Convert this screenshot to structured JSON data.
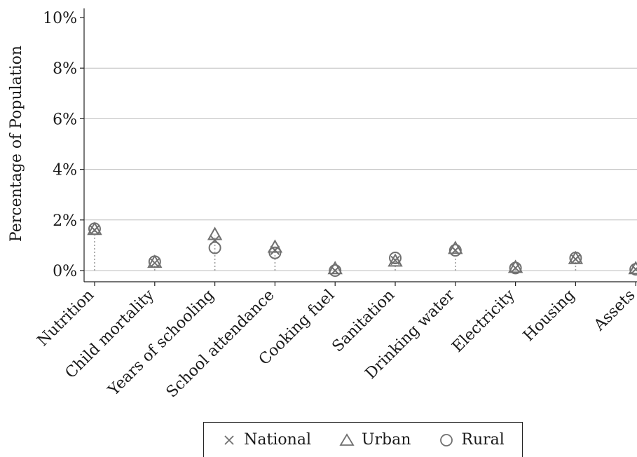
{
  "chart_data": {
    "type": "scatter",
    "ylabel": "Percentage of Population",
    "categories": [
      "Nutrition",
      "Child mortality",
      "Years of schooling",
      "School attendance",
      "Cooking fuel",
      "Sanitation",
      "Drinking water",
      "Electricity",
      "Housing",
      "Assets"
    ],
    "ylim": [
      0,
      10
    ],
    "yticks": [
      "0%",
      "2%",
      "4%",
      "6%",
      "8%",
      "10%"
    ],
    "grid": true,
    "legend": "bottom",
    "series": [
      {
        "name": "National",
        "marker": "x",
        "values": [
          1.6,
          0.3,
          1.2,
          0.8,
          0.0,
          0.4,
          0.8,
          0.1,
          0.45,
          0.05
        ]
      },
      {
        "name": "Urban",
        "marker": "triangle",
        "values": [
          1.6,
          0.3,
          1.4,
          0.9,
          0.05,
          0.35,
          0.85,
          0.1,
          0.45,
          0.05
        ]
      },
      {
        "name": "Rural",
        "marker": "circle",
        "values": [
          1.65,
          0.35,
          0.9,
          0.7,
          0.0,
          0.5,
          0.8,
          0.1,
          0.5,
          0.05
        ]
      }
    ],
    "colors": {
      "marker": "#707070",
      "grid": "#bdbdbd",
      "axis": "#222222",
      "stem": "#9a9a9a"
    }
  }
}
